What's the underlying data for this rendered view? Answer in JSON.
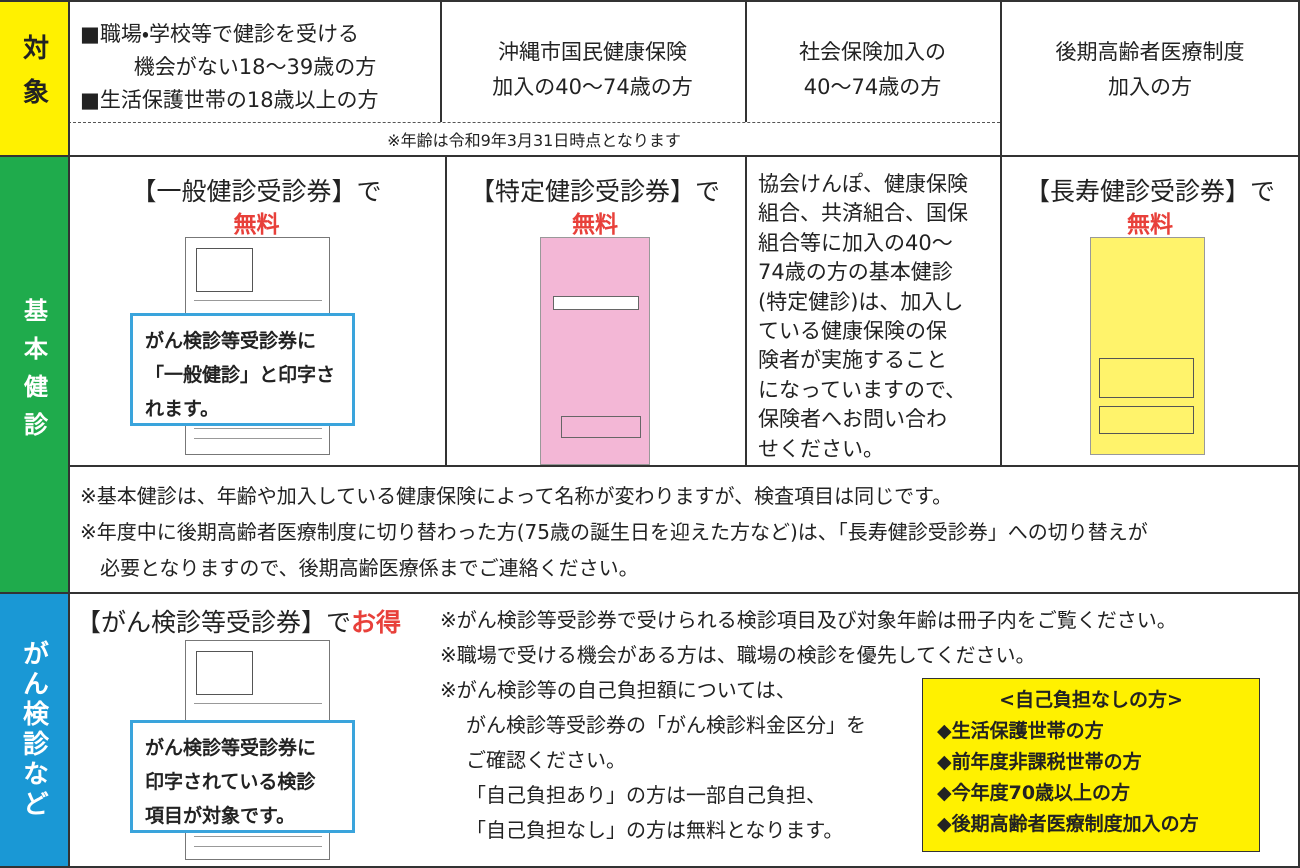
{
  "target": {
    "label": "対象",
    "cells": [
      [
        "■職場・学校等で健診を受ける",
        "機会がない18〜39歳の方",
        "■生活保護世帯の18歳以上の方"
      ],
      [
        "沖縄市国民健康保険",
        "加入の40〜74歳の方"
      ],
      [
        "社会保険加入の",
        "40〜74歳の方"
      ],
      [
        "後期高齢者医療制度",
        "加入の方"
      ]
    ],
    "note": "※年齢は令和9年3月31日時点となります"
  },
  "basic": {
    "label": "基本健診",
    "general": {
      "heading": "【一般健診受診券】で",
      "free": "無料",
      "callout": [
        "がん検診等受診券に",
        "「一般健診」と印字さ",
        "れます。"
      ]
    },
    "specific": {
      "heading": "【特定健診受診券】で",
      "free": "無料"
    },
    "insurance": [
      "協会けんぽ、健康保険",
      "組合、共済組合、国保",
      "組合等に加入の40〜",
      "74歳の方の基本健診",
      "(特定健診)は、加入し",
      "ている健康保険の保",
      "険者が実施すること",
      "になっていますので、",
      "保険者へお問い合わ",
      "せください。"
    ],
    "longevity": {
      "heading": "【長寿健診受診券】で",
      "free": "無料"
    },
    "notes": [
      "※基本健診は、年齢や加入している健康保険によって名称が変わりますが、検査項目は同じです。",
      "※年度中に後期高齢者医療制度に切り替わった方(75歳の誕生日を迎えた方など)は、「長寿健診受診券」への切り替えが",
      "必要となりますので、後期高齢医療係までご連絡ください。"
    ]
  },
  "cancer": {
    "label": "がん検診など",
    "heading": "【がん検診等受診券】で",
    "highlight": "お得",
    "callout": [
      "がん検診等受診券に",
      "印字されている検診",
      "項目が対象です。"
    ],
    "notes": [
      "※がん検診等受診券で受けられる検診項目及び対象年齢は冊子内をご覧ください。",
      "※職場で受ける機会がある方は、職場の検診を優先してください。",
      "※がん検診等の自己負担額については、",
      "がん検診等受診券の「がん検診料金区分」を",
      "ご確認ください。",
      "「自己負担あり」の方は一部自己負担、",
      "「自己負担なし」の方は無料となります。"
    ],
    "box": {
      "title": "<自己負担なしの方>",
      "items": [
        "◆生活保護世帯の方",
        "◆前年度非課税世帯の方",
        "◆今年度70歳以上の方",
        "◆後期高齢者医療制度加入の方"
      ]
    }
  }
}
